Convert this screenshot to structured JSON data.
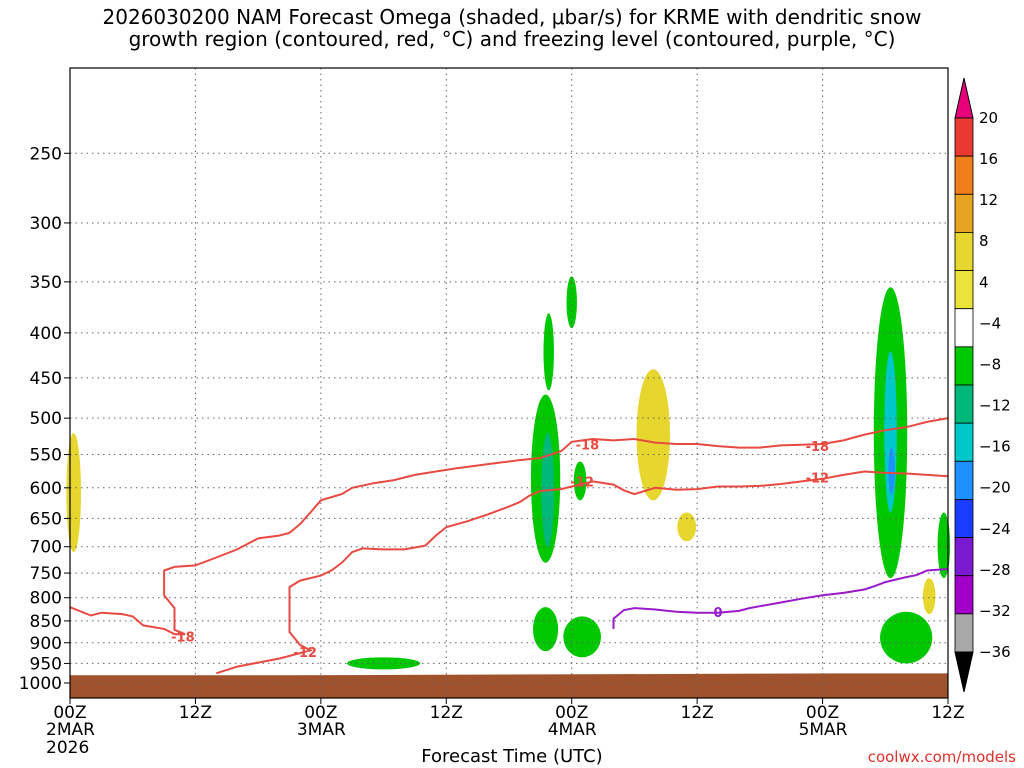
{
  "title": {
    "line1": "2026030200 NAM Forecast Omega (shaded, μbar/s) for KRME with dendritic snow",
    "line2": "growth region (contoured, red, °C) and freezing level (contoured, purple, °C)"
  },
  "credit": "coolwx.com/models",
  "chart_data": {
    "type": "time-height cross section",
    "xlabel": "Forecast Time (UTC)",
    "x_range_hours": [
      0,
      84
    ],
    "x_ticks": [
      {
        "h": 0,
        "label": "00Z",
        "sub1": "2MAR",
        "sub2": "2026"
      },
      {
        "h": 12,
        "label": "12Z",
        "sub1": "",
        "sub2": ""
      },
      {
        "h": 24,
        "label": "00Z",
        "sub1": "3MAR",
        "sub2": ""
      },
      {
        "h": 36,
        "label": "12Z",
        "sub1": "",
        "sub2": ""
      },
      {
        "h": 48,
        "label": "00Z",
        "sub1": "4MAR",
        "sub2": ""
      },
      {
        "h": 60,
        "label": "12Z",
        "sub1": "",
        "sub2": ""
      },
      {
        "h": 72,
        "label": "00Z",
        "sub1": "5MAR",
        "sub2": ""
      },
      {
        "h": 84,
        "label": "12Z",
        "sub1": "",
        "sub2": ""
      }
    ],
    "y_range_hpa": [
      1040,
      200
    ],
    "y_scale": "log",
    "y_ticks": [
      250,
      300,
      350,
      400,
      450,
      500,
      550,
      600,
      650,
      700,
      750,
      800,
      850,
      900,
      950,
      1000
    ],
    "grid": "dotted",
    "colorbar": {
      "labels": [
        "20",
        "16",
        "12",
        "8",
        "4",
        "−4",
        "−8",
        "−12",
        "−16",
        "−20",
        "−24",
        "−28",
        "−32",
        "−36"
      ],
      "colors": [
        "#e8007a",
        "#e83a32",
        "#ef7f1b",
        "#e6a421",
        "#e6d62e",
        "#e9e33a",
        "#ffffff",
        "#00c800",
        "#00b87a",
        "#00c8c8",
        "#1e90ff",
        "#1a3cff",
        "#7a1ad0",
        "#a000c8",
        "#a8a8a8",
        "#000000"
      ]
    },
    "ground": {
      "color": "#a0522d",
      "pressure_hpa": [
        980,
        980,
        980,
        979,
        978,
        977,
        976,
        975,
        975
      ]
    },
    "contours": [
      {
        "value": "-18",
        "color": "#e84a42",
        "labels": [
          {
            "text": "-18",
            "h": 10.8,
            "p": 885
          },
          {
            "text": "-18",
            "h": 49.5,
            "p": 536
          },
          {
            "text": "-18",
            "h": 71.5,
            "p": 538
          }
        ],
        "points": [
          [
            0,
            820
          ],
          [
            2,
            838
          ],
          [
            3,
            832
          ],
          [
            5,
            835
          ],
          [
            6,
            840
          ],
          [
            7,
            860
          ],
          [
            9,
            868
          ],
          [
            10,
            880
          ],
          [
            11,
            880
          ],
          [
            10,
            870
          ],
          [
            10,
            850
          ],
          [
            10,
            822
          ],
          [
            9,
            795
          ],
          [
            9,
            765
          ],
          [
            9,
            745
          ],
          [
            10,
            738
          ],
          [
            12,
            735
          ],
          [
            14,
            720
          ],
          [
            16,
            705
          ],
          [
            18,
            685
          ],
          [
            20,
            680
          ],
          [
            21,
            675
          ],
          [
            22,
            660
          ],
          [
            23,
            640
          ],
          [
            24,
            620
          ],
          [
            26,
            610
          ],
          [
            27,
            600
          ],
          [
            29,
            593
          ],
          [
            31,
            588
          ],
          [
            33,
            580
          ],
          [
            35,
            575
          ],
          [
            37,
            570
          ],
          [
            39,
            566
          ],
          [
            41,
            562
          ],
          [
            43,
            558
          ],
          [
            45,
            555
          ],
          [
            47,
            545
          ],
          [
            48,
            532
          ],
          [
            50,
            528
          ],
          [
            52,
            530
          ],
          [
            54,
            528
          ],
          [
            56,
            533
          ],
          [
            58,
            535
          ],
          [
            60,
            535
          ],
          [
            62,
            538
          ],
          [
            64,
            540
          ],
          [
            66,
            540
          ],
          [
            68,
            537
          ],
          [
            70,
            536
          ],
          [
            72,
            535
          ],
          [
            74,
            530
          ],
          [
            76,
            522
          ],
          [
            78,
            516
          ],
          [
            80,
            512
          ],
          [
            82,
            505
          ],
          [
            84,
            500
          ]
        ]
      },
      {
        "value": "-12",
        "color": "#e84a42",
        "labels": [
          {
            "text": "-12",
            "h": 22.5,
            "p": 922
          },
          {
            "text": "-12",
            "h": 49.0,
            "p": 590
          },
          {
            "text": "-12",
            "h": 71.5,
            "p": 584
          }
        ],
        "points": [
          [
            14,
            975
          ],
          [
            16,
            958
          ],
          [
            18,
            948
          ],
          [
            20,
            938
          ],
          [
            22,
            925
          ],
          [
            23,
            918
          ],
          [
            22,
            905
          ],
          [
            21,
            875
          ],
          [
            21,
            830
          ],
          [
            21,
            800
          ],
          [
            21,
            778
          ],
          [
            22,
            765
          ],
          [
            24,
            755
          ],
          [
            25,
            745
          ],
          [
            26,
            730
          ],
          [
            27,
            710
          ],
          [
            28,
            703
          ],
          [
            30,
            705
          ],
          [
            32,
            705
          ],
          [
            34,
            698
          ],
          [
            35,
            680
          ],
          [
            36,
            665
          ],
          [
            38,
            655
          ],
          [
            40,
            643
          ],
          [
            42,
            630
          ],
          [
            43,
            623
          ],
          [
            44,
            612
          ],
          [
            45,
            605
          ],
          [
            47,
            602
          ],
          [
            48,
            598
          ],
          [
            50,
            590
          ],
          [
            52,
            595
          ],
          [
            53,
            604
          ],
          [
            54,
            610
          ],
          [
            56,
            600
          ],
          [
            58,
            603
          ],
          [
            60,
            602
          ],
          [
            62,
            598
          ],
          [
            64,
            598
          ],
          [
            66,
            597
          ],
          [
            68,
            594
          ],
          [
            70,
            590
          ],
          [
            72,
            586
          ],
          [
            74,
            580
          ],
          [
            76,
            575
          ],
          [
            78,
            577
          ],
          [
            80,
            578
          ],
          [
            82,
            580
          ],
          [
            84,
            582
          ]
        ]
      },
      {
        "value": "0",
        "color": "#9b1acb",
        "labels": [
          {
            "text": "0",
            "h": 62.0,
            "p": 830
          }
        ],
        "points": [
          [
            52,
            868
          ],
          [
            52,
            845
          ],
          [
            53,
            826
          ],
          [
            54,
            822
          ],
          [
            56,
            825
          ],
          [
            58,
            830
          ],
          [
            60,
            832
          ],
          [
            62,
            832
          ],
          [
            64,
            828
          ],
          [
            65,
            822
          ],
          [
            66,
            818
          ],
          [
            68,
            810
          ],
          [
            70,
            802
          ],
          [
            72,
            795
          ],
          [
            74,
            790
          ],
          [
            76,
            783
          ],
          [
            77,
            776
          ],
          [
            78,
            768
          ],
          [
            80,
            758
          ],
          [
            81,
            754
          ],
          [
            82,
            745
          ],
          [
            84,
            742
          ]
        ]
      }
    ],
    "shaded": [
      {
        "level": "4 to 8",
        "color": "#e6d62e",
        "regions": [
          "west-edge 600 hPa",
          "0900Z 4MAR 550 hPa",
          "1000Z 4MAR 650 hPa",
          "1000Z 5MAR 780 hPa"
        ]
      },
      {
        "level": "-4 to -8",
        "color": "#00c800",
        "regions": [
          "0400Z 3MAR 950 hPa",
          "1800Z 3MAR 400-950 hPa",
          "0000Z 4MAR 370 hPa",
          "0700Z 5MAR 370-950 hPa"
        ]
      },
      {
        "level": "-12 to -16",
        "color": "#00c8c8",
        "regions": [
          "1800Z 3MAR 550 hPa",
          "0600Z 5MAR 450-600 hPa"
        ]
      }
    ]
  }
}
